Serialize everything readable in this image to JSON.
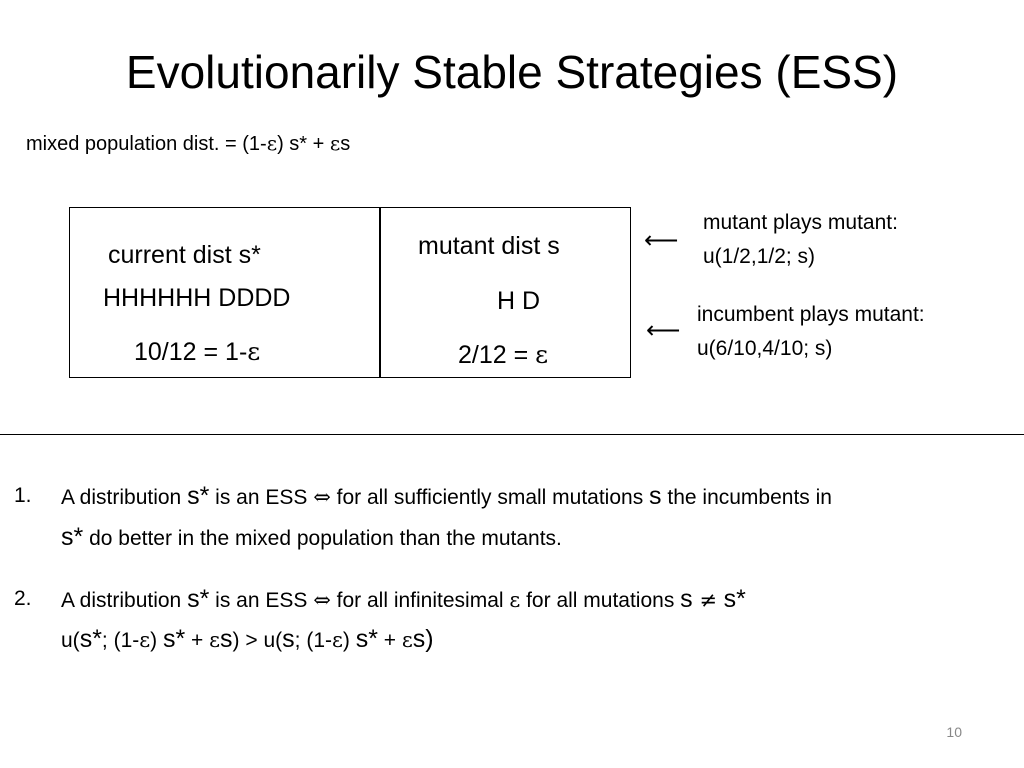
{
  "slide": {
    "title": "Evolutionarily Stable Strategies (ESS)",
    "subtitle": {
      "prefix": "mixed population dist. = (1-",
      "eps1": "ε",
      "mid": ") s* + ",
      "eps2": "ε",
      "suffix": "s"
    },
    "table": {
      "left": {
        "heading": "current dist s*",
        "sequence": "HHHHHH DDDD",
        "fraction_prefix": "10/12 = 1-",
        "eps": "ε"
      },
      "right": {
        "heading": "mutant dist s",
        "sequence": "H D",
        "fraction_prefix": "2/12 = ",
        "eps": "ε"
      }
    },
    "annotations": {
      "mutant": {
        "arrow": "⟵",
        "line1": "mutant plays mutant:",
        "line2": "u(1/2,1/2; s)"
      },
      "incumbent": {
        "arrow": "⟵",
        "line1": "incumbent plays mutant:",
        "line2": "u(6/10,4/10; s)"
      }
    },
    "list": {
      "item1": {
        "number": "1.",
        "a": "A distribution ",
        "s_star": "s*",
        "b": " is an ESS ",
        "iff": "⇔",
        "c": " for all sufficiently small mutations ",
        "s": "s",
        "d": " the incumbents in",
        "s_star2": "s*",
        "e": " do better in the mixed population than the mutants."
      },
      "item2": {
        "number": "2.",
        "a": "A distribution ",
        "s_star": "s*",
        "b": " is an ESS ",
        "iff": "⇔",
        "c": " for all infinitesimal ",
        "eps": "ε",
        "d": " for all mutations ",
        "s": "s",
        "neq": " ≠ ",
        "s_star2": "s*",
        "f_u1": "u(",
        "f_sstar1": "s*",
        "f_p1": "; (1-",
        "f_eps1": "ε",
        "f_p2": ") ",
        "f_sstar2": "s*",
        "f_p3": " + ",
        "f_eps2": "ε",
        "f_s1": "s",
        "f_p4": ") > u(",
        "f_s2": "s",
        "f_p5": "; (1-",
        "f_eps3": "ε",
        "f_p6": ") ",
        "f_sstar3": "s*",
        "f_p7": " + ",
        "f_eps4": "ε",
        "f_s3": "s",
        "f_p8": ")"
      }
    },
    "page_number": "10"
  }
}
